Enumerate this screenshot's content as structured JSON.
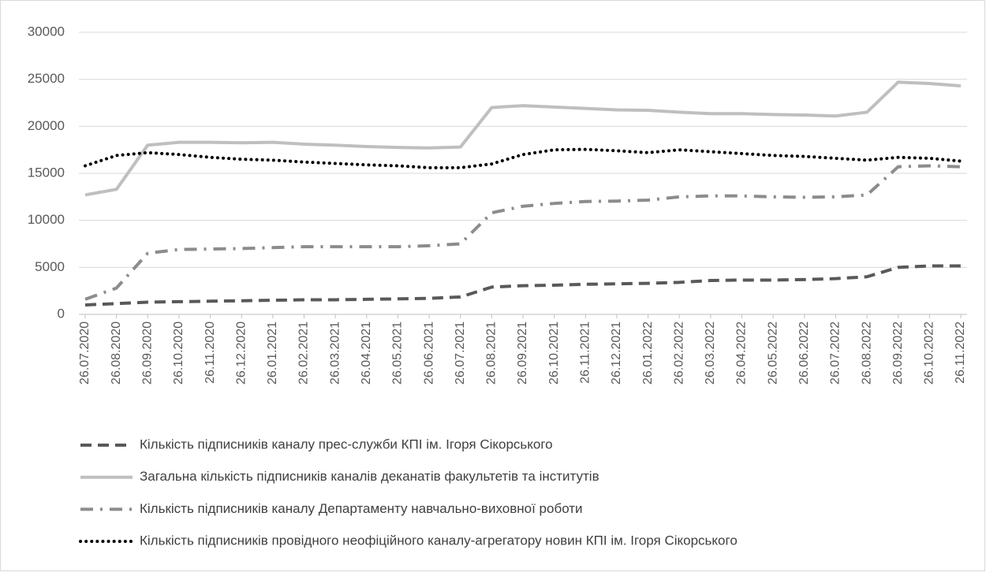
{
  "chart_data": {
    "type": "line",
    "categories": [
      "26.07.2020",
      "26.08.2020",
      "26.09.2020",
      "26.10.2020",
      "26.11.2020",
      "26.12.2020",
      "26.01.2021",
      "26.02.2021",
      "26.03.2021",
      "26.04.2021",
      "26.05.2021",
      "26.06.2021",
      "26.07.2021",
      "26.08.2021",
      "26.09.2021",
      "26.10.2021",
      "26.11.2021",
      "26.12.2021",
      "26.01.2022",
      "26.02.2022",
      "26.03.2022",
      "26.04.2022",
      "26.05.2022",
      "26.06.2022",
      "26.07.2022",
      "26.08.2022",
      "26.09.2022",
      "26.10.2022",
      "26.11.2022"
    ],
    "series": [
      {
        "name": "Кількість підписників каналу прес-служби КПІ ім. Ігоря Сікорського",
        "color": "#595959",
        "style": "dash",
        "values": [
          1000,
          1150,
          1300,
          1350,
          1400,
          1450,
          1500,
          1550,
          1550,
          1600,
          1650,
          1700,
          1850,
          2900,
          3050,
          3100,
          3200,
          3250,
          3300,
          3400,
          3600,
          3650,
          3650,
          3700,
          3800,
          4000,
          5000,
          5150,
          5150
        ]
      },
      {
        "name": "Загальна кількість підписників каналів деканатів факультетів та інститутів",
        "color": "#bfbfbf",
        "style": "solid",
        "values": [
          12700,
          13300,
          18000,
          18300,
          18300,
          18250,
          18300,
          18100,
          18000,
          17850,
          17750,
          17700,
          17800,
          22000,
          22200,
          22050,
          21900,
          21750,
          21700,
          21500,
          21350,
          21350,
          21250,
          21200,
          21100,
          21500,
          24700,
          24550,
          24300
        ]
      },
      {
        "name": "Кількість підписників каналу Департаменту навчально-виховної роботи",
        "color": "#8c8c8c",
        "style": "dashdot",
        "values": [
          1600,
          2800,
          6500,
          6900,
          6950,
          7000,
          7100,
          7200,
          7200,
          7200,
          7200,
          7300,
          7500,
          10800,
          11500,
          11800,
          12000,
          12050,
          12150,
          12500,
          12600,
          12600,
          12500,
          12450,
          12500,
          12700,
          15700,
          15800,
          15700
        ]
      },
      {
        "name": "Кількість підписників провідного неофіційного каналу-агрегатору новин КПІ ім. Ігоря Сікорського",
        "color": "#000000",
        "style": "dot",
        "values": [
          15800,
          16900,
          17200,
          17000,
          16700,
          16500,
          16400,
          16200,
          16050,
          15900,
          15800,
          15600,
          15600,
          16000,
          17000,
          17500,
          17550,
          17400,
          17200,
          17500,
          17300,
          17100,
          16900,
          16800,
          16600,
          16400,
          16700,
          16600,
          16300
        ]
      }
    ],
    "ylim": [
      0,
      30000
    ],
    "yticks": [
      0,
      5000,
      10000,
      15000,
      20000,
      25000,
      30000
    ],
    "grid": true,
    "legend": "bottom"
  }
}
